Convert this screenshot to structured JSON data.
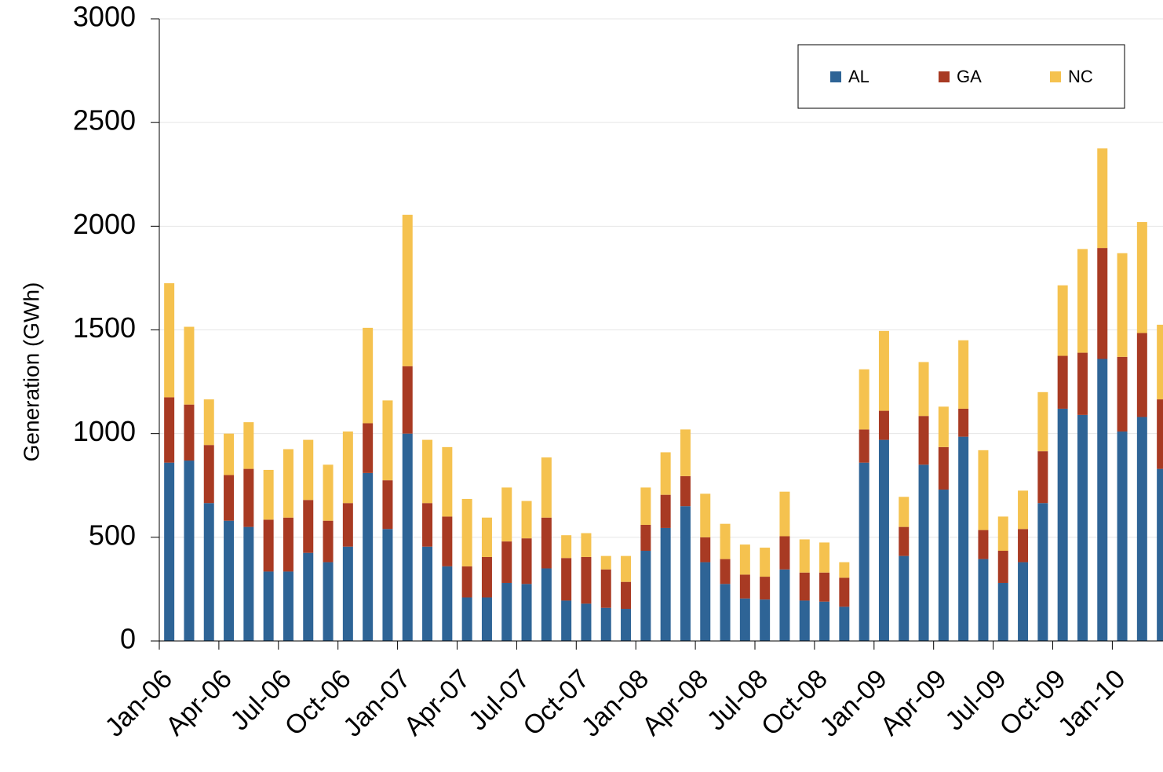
{
  "chart_data": {
    "type": "stacked_bar",
    "y_label": "Generation (GWh)",
    "categories": [
      "Jan-06",
      null,
      null,
      "Apr-06",
      null,
      null,
      "Jul-06",
      null,
      null,
      "Oct-06",
      null,
      null,
      "Jan-07",
      null,
      null,
      "Apr-07",
      null,
      null,
      "Jul-07",
      null,
      null,
      "Oct-07",
      null,
      null,
      "Jan-08",
      null,
      null,
      "Apr-08",
      null,
      null,
      "Jul-08",
      null,
      null,
      "Oct-08",
      null,
      null,
      "Jan-09",
      null,
      null,
      "Apr-09",
      null,
      null,
      "Jul-09",
      null,
      null,
      "Oct-09",
      null,
      null,
      "Jan-10",
      null,
      null
    ],
    "series": [
      {
        "name": "AL",
        "color": "#2e6496",
        "values": [
          860,
          870,
          665,
          580,
          550,
          335,
          335,
          425,
          380,
          455,
          810,
          540,
          1000,
          455,
          360,
          210,
          210,
          280,
          275,
          350,
          195,
          180,
          160,
          155,
          435,
          545,
          650,
          380,
          275,
          205,
          200,
          345,
          195,
          190,
          165,
          860,
          970,
          410,
          850,
          730,
          985,
          395,
          280,
          380,
          665,
          1120,
          1090,
          1360,
          1010,
          1080,
          830
        ]
      },
      {
        "name": "GA",
        "color": "#a83a23",
        "values": [
          315,
          270,
          280,
          220,
          280,
          250,
          260,
          255,
          200,
          210,
          240,
          235,
          325,
          210,
          240,
          150,
          195,
          200,
          220,
          245,
          205,
          225,
          185,
          130,
          125,
          160,
          145,
          120,
          120,
          115,
          110,
          160,
          135,
          140,
          140,
          160,
          140,
          140,
          235,
          205,
          135,
          140,
          155,
          160,
          250,
          255,
          300,
          535,
          360,
          405,
          335
        ]
      },
      {
        "name": "NC",
        "color": "#f5c24f",
        "values": [
          550,
          375,
          220,
          200,
          225,
          240,
          330,
          290,
          270,
          345,
          460,
          385,
          730,
          305,
          335,
          325,
          190,
          260,
          180,
          290,
          110,
          115,
          65,
          125,
          180,
          205,
          225,
          210,
          170,
          145,
          140,
          215,
          160,
          145,
          75,
          290,
          385,
          145,
          260,
          195,
          330,
          385,
          165,
          185,
          285,
          340,
          500,
          480,
          500,
          535,
          360
        ]
      }
    ],
    "ylim": [
      0,
      3000
    ],
    "yticks": [
      0,
      500,
      1000,
      1500,
      2000,
      2500,
      3000
    ],
    "grid": true
  }
}
